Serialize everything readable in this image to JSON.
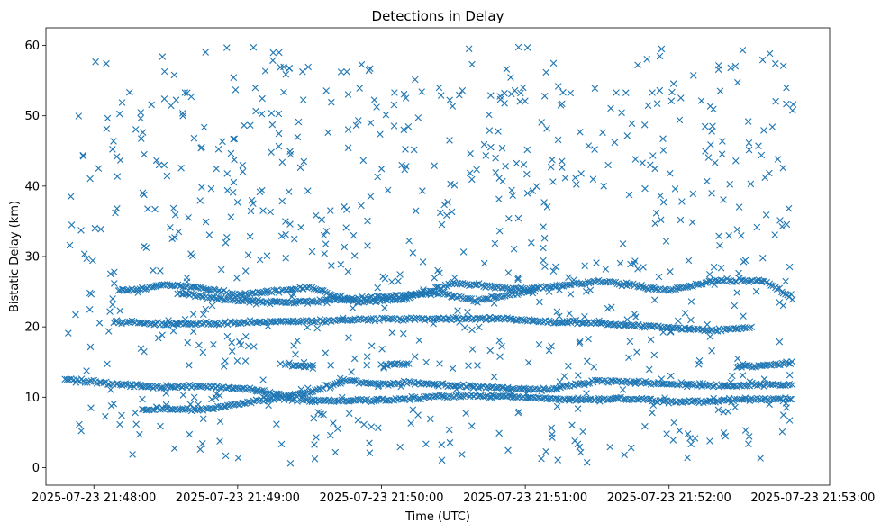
{
  "chart_data": {
    "type": "scatter",
    "title": "Detections in Delay",
    "xlabel": "Time (UTC)",
    "ylabel": "Bistatic Delay (km)",
    "marker": "x",
    "color": "#1f77b4",
    "grid": false,
    "legend": "none",
    "x_is_time": true,
    "xlim": [
      "2025-07-23 21:47:40",
      "2025-07-23 21:53:07"
    ],
    "ylim": [
      -2.5,
      62.5
    ],
    "xticks": [
      "2025-07-23 21:48:00",
      "2025-07-23 21:49:00",
      "2025-07-23 21:50:00",
      "2025-07-23 21:51:00",
      "2025-07-23 21:52:00",
      "2025-07-23 21:53:00"
    ],
    "yticks": [
      0,
      10,
      20,
      30,
      40,
      50,
      60
    ],
    "time_range": [
      "2025-07-23 21:47:48",
      "2025-07-23 21:52:52"
    ],
    "tracks": [
      {
        "t": [
          "2025-07-23 21:47:48",
          "2025-07-23 21:48:10",
          "2025-07-23 21:48:25",
          "2025-07-23 21:48:40",
          "2025-07-23 21:49:05",
          "2025-07-23 21:49:20",
          "2025-07-23 21:49:30",
          "2025-07-23 21:49:45",
          "2025-07-23 21:50:00",
          "2025-07-23 21:50:10",
          "2025-07-23 21:50:30",
          "2025-07-23 21:50:50",
          "2025-07-23 21:51:10",
          "2025-07-23 21:51:30",
          "2025-07-23 21:51:50",
          "2025-07-23 21:52:00",
          "2025-07-23 21:52:25",
          "2025-07-23 21:52:37",
          "2025-07-23 21:52:52"
        ],
        "y": [
          12.5,
          11.9,
          11.4,
          11.6,
          11.2,
          10.2,
          10.6,
          12.4,
          11.8,
          12.1,
          11.6,
          11.3,
          11.1,
          12.4,
          12.1,
          11.9,
          11.6,
          11.8,
          11.7
        ]
      },
      {
        "t": [
          "2025-07-23 21:48:20",
          "2025-07-23 21:48:45",
          "2025-07-23 21:49:15",
          "2025-07-23 21:49:40",
          "2025-07-23 21:50:00",
          "2025-07-23 21:50:30",
          "2025-07-23 21:50:55",
          "2025-07-23 21:51:20",
          "2025-07-23 21:51:40",
          "2025-07-23 21:52:05",
          "2025-07-23 21:52:30",
          "2025-07-23 21:52:52"
        ],
        "y": [
          8.4,
          8.2,
          9.8,
          9.5,
          9.6,
          10.2,
          10.1,
          9.6,
          9.8,
          9.3,
          9.6,
          9.8
        ]
      },
      {
        "t": [
          "2025-07-23 21:49:20",
          "2025-07-23 21:49:32"
        ],
        "y": [
          14.7,
          14.4
        ]
      },
      {
        "t": [
          "2025-07-23 21:50:00",
          "2025-07-23 21:50:12"
        ],
        "y": [
          14.5,
          14.8
        ]
      },
      {
        "t": [
          "2025-07-23 21:52:28",
          "2025-07-23 21:52:52"
        ],
        "y": [
          14.3,
          14.8
        ]
      },
      {
        "t": [
          "2025-07-23 21:48:10",
          "2025-07-23 21:48:20",
          "2025-07-23 21:48:28",
          "2025-07-23 21:48:40",
          "2025-07-23 21:49:00",
          "2025-07-23 21:49:15",
          "2025-07-23 21:49:30",
          "2025-07-23 21:49:50",
          "2025-07-23 21:50:10",
          "2025-07-23 21:50:30",
          "2025-07-23 21:50:50",
          "2025-07-23 21:51:00",
          "2025-07-23 21:51:15",
          "2025-07-23 21:51:30",
          "2025-07-23 21:52:00",
          "2025-07-23 21:52:20",
          "2025-07-23 21:52:40",
          "2025-07-23 21:52:52"
        ],
        "y": [
          25.2,
          25.4,
          26.0,
          25.8,
          24.6,
          25.1,
          25.6,
          23.5,
          24.0,
          26.2,
          25.6,
          25.4,
          25.9,
          26.5,
          25.2,
          26.6,
          26.6,
          23.8
        ]
      },
      {
        "t": [
          "2025-07-23 21:48:35",
          "2025-07-23 21:48:55",
          "2025-07-23 21:49:20",
          "2025-07-23 21:49:40",
          "2025-07-23 21:50:05",
          "2025-07-23 21:50:25",
          "2025-07-23 21:50:40",
          "2025-07-23 21:51:05"
        ],
        "y": [
          24.8,
          23.9,
          23.4,
          23.8,
          24.4,
          24.8,
          23.7,
          25.2
        ]
      },
      {
        "t": [
          "2025-07-23 21:48:08",
          "2025-07-23 21:48:20",
          "2025-07-23 21:48:35",
          "2025-07-23 21:49:40",
          "2025-07-23 21:50:00",
          "2025-07-23 21:50:45",
          "2025-07-23 21:51:10",
          "2025-07-23 21:51:25",
          "2025-07-23 21:52:00",
          "2025-07-23 21:52:20",
          "2025-07-23 21:52:35"
        ],
        "y": [
          20.8,
          20.6,
          20.4,
          20.9,
          21.1,
          21.2,
          20.7,
          20.6,
          19.9,
          19.5,
          19.9
        ]
      }
    ],
    "scatter_points": 800,
    "scatter_range": [
      0.5,
      59.8
    ]
  }
}
